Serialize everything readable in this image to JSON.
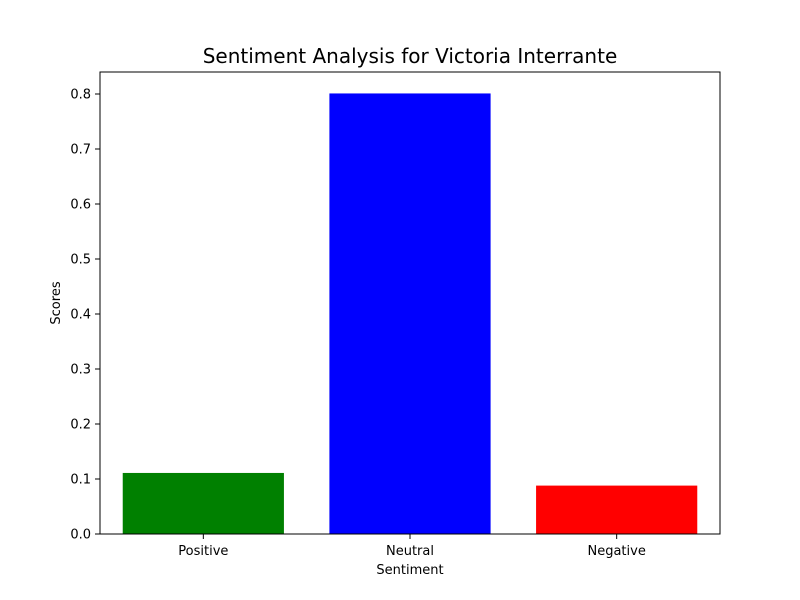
{
  "chart_data": {
    "type": "bar",
    "title": "Sentiment Analysis for Victoria Interrante",
    "xlabel": "Sentiment",
    "ylabel": "Scores",
    "categories": [
      "Positive",
      "Neutral",
      "Negative"
    ],
    "values": [
      0.111,
      0.801,
      0.088
    ],
    "colors": [
      "#008000",
      "#0000ff",
      "#ff0000"
    ],
    "ylim": [
      0,
      0.84
    ],
    "yticks": [
      0.0,
      0.1,
      0.2,
      0.3,
      0.4,
      0.5,
      0.6,
      0.7,
      0.8
    ],
    "ytick_labels": [
      "0.0",
      "0.1",
      "0.2",
      "0.3",
      "0.4",
      "0.5",
      "0.6",
      "0.7",
      "0.8"
    ],
    "grid": false,
    "legend": "none"
  }
}
